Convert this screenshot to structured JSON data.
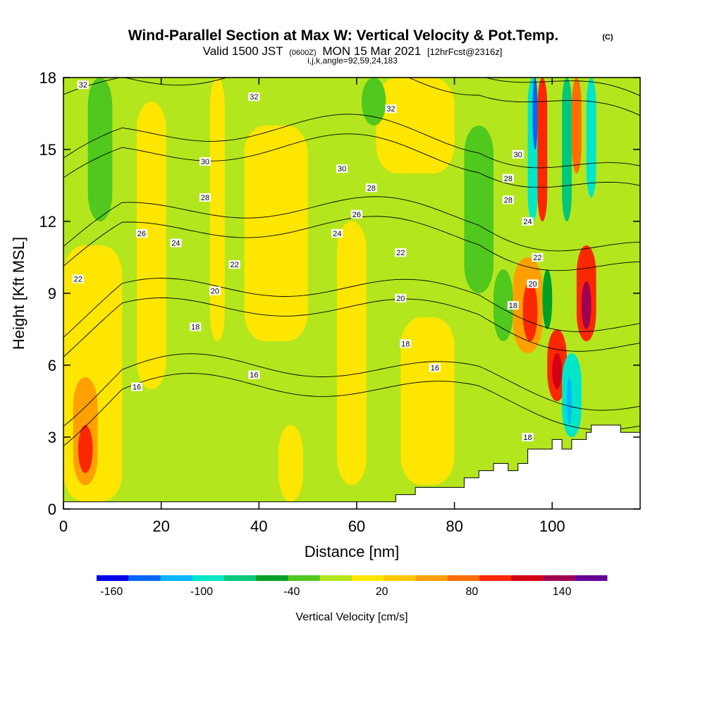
{
  "header": {
    "title": "Wind-Parallel Section at Max W: Vertical Velocity & Pot.Temp.",
    "copyright": "(C)",
    "valid_prefix": "Valid 1500 JST",
    "valid_utc": "(0600Z)",
    "valid_date": "MON 15 Mar 2021",
    "forecast": "[12hrFcst@2316z]",
    "indices": "i,j,k,angle=92,59,24,183"
  },
  "chart_data": {
    "type": "heatmap",
    "xlabel": "Distance [nm]",
    "ylabel": "Height [Kft MSL]",
    "xlim": [
      0,
      118
    ],
    "ylim": [
      0,
      18
    ],
    "x_ticks": [
      0,
      20,
      40,
      60,
      80,
      100
    ],
    "y_ticks": [
      0,
      3,
      6,
      9,
      12,
      15,
      18
    ],
    "colorbar": {
      "label": "Vertical Velocity [cm/s]",
      "tick_labels": [
        "-160",
        "-100",
        "-40",
        "20",
        "80",
        "140"
      ],
      "tick_values": [
        -160,
        -100,
        -40,
        20,
        80,
        140
      ],
      "bins": [
        -170,
        -150,
        -130,
        -110,
        -90,
        -70,
        -50,
        -30,
        -10,
        10,
        30,
        50,
        70,
        90,
        110,
        130,
        150,
        170
      ],
      "colors": [
        "#0000e6",
        "#0064f5",
        "#00b4ff",
        "#00e6c8",
        "#00c878",
        "#00a028",
        "#50c81e",
        "#b4e61e",
        "#ffe600",
        "#ffc800",
        "#ffa000",
        "#ff6e00",
        "#fa2800",
        "#d20014",
        "#a00050",
        "#640096"
      ]
    },
    "series": [
      {
        "name": "Potential temperature contours",
        "x_range": [
          0,
          118
        ],
        "contour_levels": [
          16,
          18,
          20,
          22,
          24,
          26,
          28,
          30,
          32
        ],
        "labels": [
          {
            "text": "32",
            "x": 4,
            "y": 17.7
          },
          {
            "text": "32",
            "x": 39,
            "y": 17.2
          },
          {
            "text": "32",
            "x": 67,
            "y": 16.7
          },
          {
            "text": "30",
            "x": 29,
            "y": 14.5
          },
          {
            "text": "30",
            "x": 57,
            "y": 14.2
          },
          {
            "text": "30",
            "x": 93,
            "y": 14.8
          },
          {
            "text": "28",
            "x": 29,
            "y": 13.0
          },
          {
            "text": "28",
            "x": 63,
            "y": 13.4
          },
          {
            "text": "28",
            "x": 91,
            "y": 13.8
          },
          {
            "text": "28",
            "x": 91,
            "y": 12.9
          },
          {
            "text": "26",
            "x": 16,
            "y": 11.5
          },
          {
            "text": "26",
            "x": 60,
            "y": 12.3
          },
          {
            "text": "24",
            "x": 23,
            "y": 11.1
          },
          {
            "text": "24",
            "x": 56,
            "y": 11.5
          },
          {
            "text": "24",
            "x": 95,
            "y": 12.0
          },
          {
            "text": "22",
            "x": 3,
            "y": 9.6
          },
          {
            "text": "22",
            "x": 35,
            "y": 10.2
          },
          {
            "text": "22",
            "x": 69,
            "y": 10.7
          },
          {
            "text": "22",
            "x": 97,
            "y": 10.5
          },
          {
            "text": "20",
            "x": 31,
            "y": 9.1
          },
          {
            "text": "20",
            "x": 69,
            "y": 8.8
          },
          {
            "text": "20",
            "x": 96,
            "y": 9.4
          },
          {
            "text": "18",
            "x": 27,
            "y": 7.6
          },
          {
            "text": "18",
            "x": 70,
            "y": 6.9
          },
          {
            "text": "18",
            "x": 92,
            "y": 8.5
          },
          {
            "text": "18",
            "x": 95,
            "y": 3.0
          },
          {
            "text": "16",
            "x": 15,
            "y": 5.1
          },
          {
            "text": "16",
            "x": 39,
            "y": 5.6
          },
          {
            "text": "16",
            "x": 76,
            "y": 5.9
          }
        ]
      }
    ],
    "regions": [
      {
        "x": [
          0,
          118
        ],
        "y": [
          0,
          18
        ],
        "value": -20
      },
      {
        "x": [
          0,
          12
        ],
        "y": [
          0.3,
          11
        ],
        "value": 0
      },
      {
        "x": [
          15,
          21
        ],
        "y": [
          5,
          17
        ],
        "value": 0
      },
      {
        "x": [
          30,
          33
        ],
        "y": [
          7,
          18
        ],
        "value": 0
      },
      {
        "x": [
          37,
          50
        ],
        "y": [
          7,
          16
        ],
        "value": 0
      },
      {
        "x": [
          44,
          49
        ],
        "y": [
          0.3,
          3.5
        ],
        "value": 0
      },
      {
        "x": [
          56,
          62
        ],
        "y": [
          1,
          12
        ],
        "value": 0
      },
      {
        "x": [
          69,
          80
        ],
        "y": [
          1,
          8
        ],
        "value": 0
      },
      {
        "x": [
          64,
          80
        ],
        "y": [
          14,
          18
        ],
        "value": 0
      },
      {
        "x": [
          5,
          10
        ],
        "y": [
          12,
          18
        ],
        "value": -40
      },
      {
        "x": [
          61,
          66
        ],
        "y": [
          16,
          18
        ],
        "value": -40
      },
      {
        "x": [
          82,
          88
        ],
        "y": [
          9,
          16
        ],
        "value": -40
      },
      {
        "x": [
          88,
          92
        ],
        "y": [
          7,
          10
        ],
        "value": -40
      },
      {
        "x": [
          2,
          7
        ],
        "y": [
          1,
          5.5
        ],
        "value": 40
      },
      {
        "x": [
          3,
          6
        ],
        "y": [
          1.5,
          3.5
        ],
        "value": 80
      },
      {
        "x": [
          92,
          98
        ],
        "y": [
          6.5,
          10.5
        ],
        "value": 40
      },
      {
        "x": [
          94,
          97
        ],
        "y": [
          7,
          9.5
        ],
        "value": 80
      },
      {
        "x": [
          99,
          103
        ],
        "y": [
          4.5,
          7.5
        ],
        "value": 80
      },
      {
        "x": [
          100,
          102
        ],
        "y": [
          5,
          6.5
        ],
        "value": 100
      },
      {
        "x": [
          105,
          109
        ],
        "y": [
          7,
          11
        ],
        "value": 80
      },
      {
        "x": [
          106,
          108
        ],
        "y": [
          7.5,
          9.5
        ],
        "value": 120
      },
      {
        "x": [
          95,
          97
        ],
        "y": [
          12,
          18
        ],
        "value": -100
      },
      {
        "x": [
          96,
          97
        ],
        "y": [
          15,
          18
        ],
        "value": -140
      },
      {
        "x": [
          97,
          99
        ],
        "y": [
          12,
          18
        ],
        "value": 80
      },
      {
        "x": [
          102,
          104
        ],
        "y": [
          12,
          18
        ],
        "value": -80
      },
      {
        "x": [
          104,
          106
        ],
        "y": [
          14,
          18
        ],
        "value": 60
      },
      {
        "x": [
          107,
          109
        ],
        "y": [
          13,
          18
        ],
        "value": -100
      },
      {
        "x": [
          102,
          106
        ],
        "y": [
          3,
          6.5
        ],
        "value": -100
      },
      {
        "x": [
          103,
          104
        ],
        "y": [
          3.5,
          5.5
        ],
        "value": -120
      },
      {
        "x": [
          98,
          100
        ],
        "y": [
          7.5,
          10
        ],
        "value": -60
      }
    ],
    "terrain": [
      [
        0,
        0.3
      ],
      [
        68,
        0.3
      ],
      [
        68,
        0.6
      ],
      [
        72,
        0.6
      ],
      [
        72,
        0.9
      ],
      [
        82,
        0.9
      ],
      [
        82,
        1.3
      ],
      [
        85,
        1.3
      ],
      [
        85,
        1.6
      ],
      [
        88,
        1.6
      ],
      [
        88,
        1.9
      ],
      [
        91,
        1.9
      ],
      [
        91,
        1.6
      ],
      [
        93,
        1.6
      ],
      [
        93,
        1.9
      ],
      [
        95,
        1.9
      ],
      [
        95,
        2.5
      ],
      [
        100,
        2.5
      ],
      [
        100,
        2.9
      ],
      [
        102,
        2.9
      ],
      [
        102,
        2.5
      ],
      [
        104,
        2.5
      ],
      [
        104,
        2.9
      ],
      [
        107,
        2.9
      ],
      [
        107,
        3.2
      ],
      [
        108,
        3.2
      ],
      [
        108,
        3.5
      ],
      [
        114,
        3.5
      ],
      [
        114,
        3.2
      ],
      [
        118,
        3.2
      ]
    ],
    "grid": false
  }
}
